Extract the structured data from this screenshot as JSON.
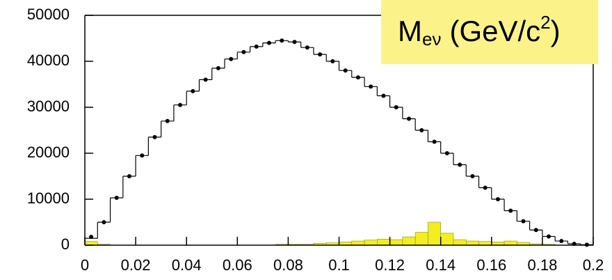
{
  "chart_data": {
    "type": "histogram",
    "x_label": {
      "base": "M",
      "sub": "eν",
      "unit": "(GeV/c",
      "sup": "2",
      "close": ")"
    },
    "bins": [
      0,
      0.005,
      0.01,
      0.015,
      0.02,
      0.025,
      0.03,
      0.035,
      0.04,
      0.045,
      0.05,
      0.055,
      0.06,
      0.065,
      0.07,
      0.075,
      0.08,
      0.085,
      0.09,
      0.095,
      0.1,
      0.105,
      0.11,
      0.115,
      0.12,
      0.125,
      0.13,
      0.135,
      0.14,
      0.145,
      0.15,
      0.155,
      0.16,
      0.165,
      0.17,
      0.175,
      0.18,
      0.185,
      0.19,
      0.195,
      0.2
    ],
    "series": [
      {
        "style": "step",
        "color": "#000000",
        "values": [
          1500,
          5000,
          10300,
          15000,
          19500,
          23500,
          27000,
          30500,
          33500,
          36000,
          38500,
          40500,
          42000,
          43200,
          44000,
          44500,
          44200,
          43000,
          41500,
          40000,
          38000,
          36500,
          34500,
          32500,
          30000,
          27500,
          25000,
          22500,
          20000,
          17500,
          15000,
          12500,
          10000,
          7500,
          5200,
          3300,
          1900,
          900,
          300,
          100
        ]
      },
      {
        "style": "points",
        "color": "#000000",
        "values": [
          1800,
          5000,
          10300,
          15000,
          19500,
          23500,
          27000,
          30500,
          33500,
          36000,
          38500,
          40500,
          42000,
          43200,
          44000,
          44500,
          44200,
          43000,
          41500,
          40000,
          38000,
          36500,
          34500,
          32500,
          30000,
          27500,
          25000,
          22500,
          20000,
          17500,
          15000,
          12500,
          10000,
          7500,
          5200,
          3300,
          1900,
          900,
          300,
          100
        ]
      },
      {
        "style": "filled-step",
        "color": "#f2ee22",
        "values": [
          800,
          200,
          0,
          0,
          0,
          0,
          0,
          0,
          0,
          0,
          0,
          0,
          0,
          0,
          0,
          200,
          200,
          200,
          400,
          500,
          700,
          900,
          1100,
          1300,
          1200,
          1800,
          2800,
          5000,
          2600,
          1200,
          900,
          800,
          700,
          900,
          600,
          300,
          200,
          0,
          0,
          0
        ]
      }
    ],
    "xlim": [
      0,
      0.2
    ],
    "xticks": [
      0,
      0.02,
      0.04,
      0.06,
      0.08,
      0.1,
      0.12,
      0.14,
      0.16,
      0.18,
      0.2
    ],
    "ylim": [
      0,
      50000
    ],
    "yticks": [
      0,
      10000,
      20000,
      30000,
      40000,
      50000
    ]
  }
}
